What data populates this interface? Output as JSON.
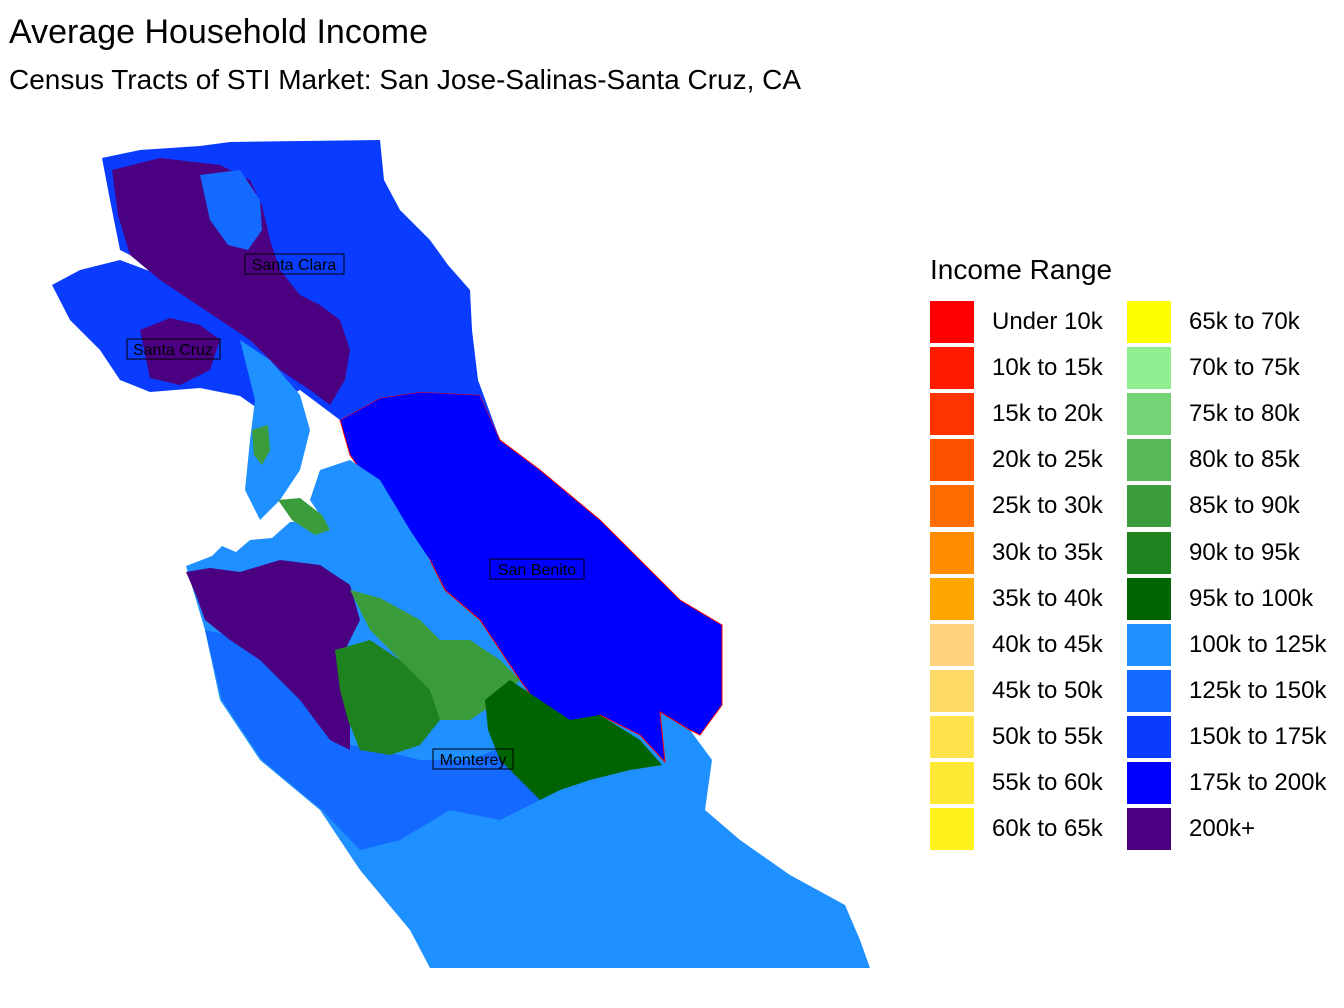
{
  "title": "Average Household Income",
  "subtitle": "Census Tracts of STI Market: San Jose-Salinas-Santa Cruz, CA",
  "region_labels": {
    "santa_clara": "Santa Clara",
    "santa_cruz": "Santa Cruz",
    "san_benito": "San Benito",
    "monterey": "Monterey"
  },
  "legend": {
    "title": "Income Range",
    "items": [
      {
        "label": "Under 10k",
        "color": "#ff0000"
      },
      {
        "label": "10k to 15k",
        "color": "#ff1a00"
      },
      {
        "label": "15k to 20k",
        "color": "#ff3300"
      },
      {
        "label": "20k to 25k",
        "color": "#ff5200"
      },
      {
        "label": "25k to 30k",
        "color": "#ff6d00"
      },
      {
        "label": "30k to 35k",
        "color": "#ff8c00"
      },
      {
        "label": "35k to 40k",
        "color": "#ffa500"
      },
      {
        "label": "40k to 45k",
        "color": "#ffd27f"
      },
      {
        "label": "45k to 50k",
        "color": "#ffd966"
      },
      {
        "label": "50k to 55k",
        "color": "#ffe14d"
      },
      {
        "label": "55k to 60k",
        "color": "#ffe833"
      },
      {
        "label": "60k to 65k",
        "color": "#fff21a"
      },
      {
        "label": "65k to 70k",
        "color": "#ffff00"
      },
      {
        "label": "70k to 75k",
        "color": "#90ee90"
      },
      {
        "label": "75k to 80k",
        "color": "#74d374"
      },
      {
        "label": "80k to 85k",
        "color": "#57b857"
      },
      {
        "label": "85k to 90k",
        "color": "#3b9c3b"
      },
      {
        "label": "90k to 95k",
        "color": "#1e821e"
      },
      {
        "label": "95k to 100k",
        "color": "#006400"
      },
      {
        "label": "100k to 125k",
        "color": "#1e90ff"
      },
      {
        "label": "125k to 150k",
        "color": "#1469ff"
      },
      {
        "label": "150k to 175k",
        "color": "#0a3cff"
      },
      {
        "label": "175k to 200k",
        "color": "#0000ff"
      },
      {
        "label": "200k+",
        "color": "#4b0082"
      }
    ]
  }
}
